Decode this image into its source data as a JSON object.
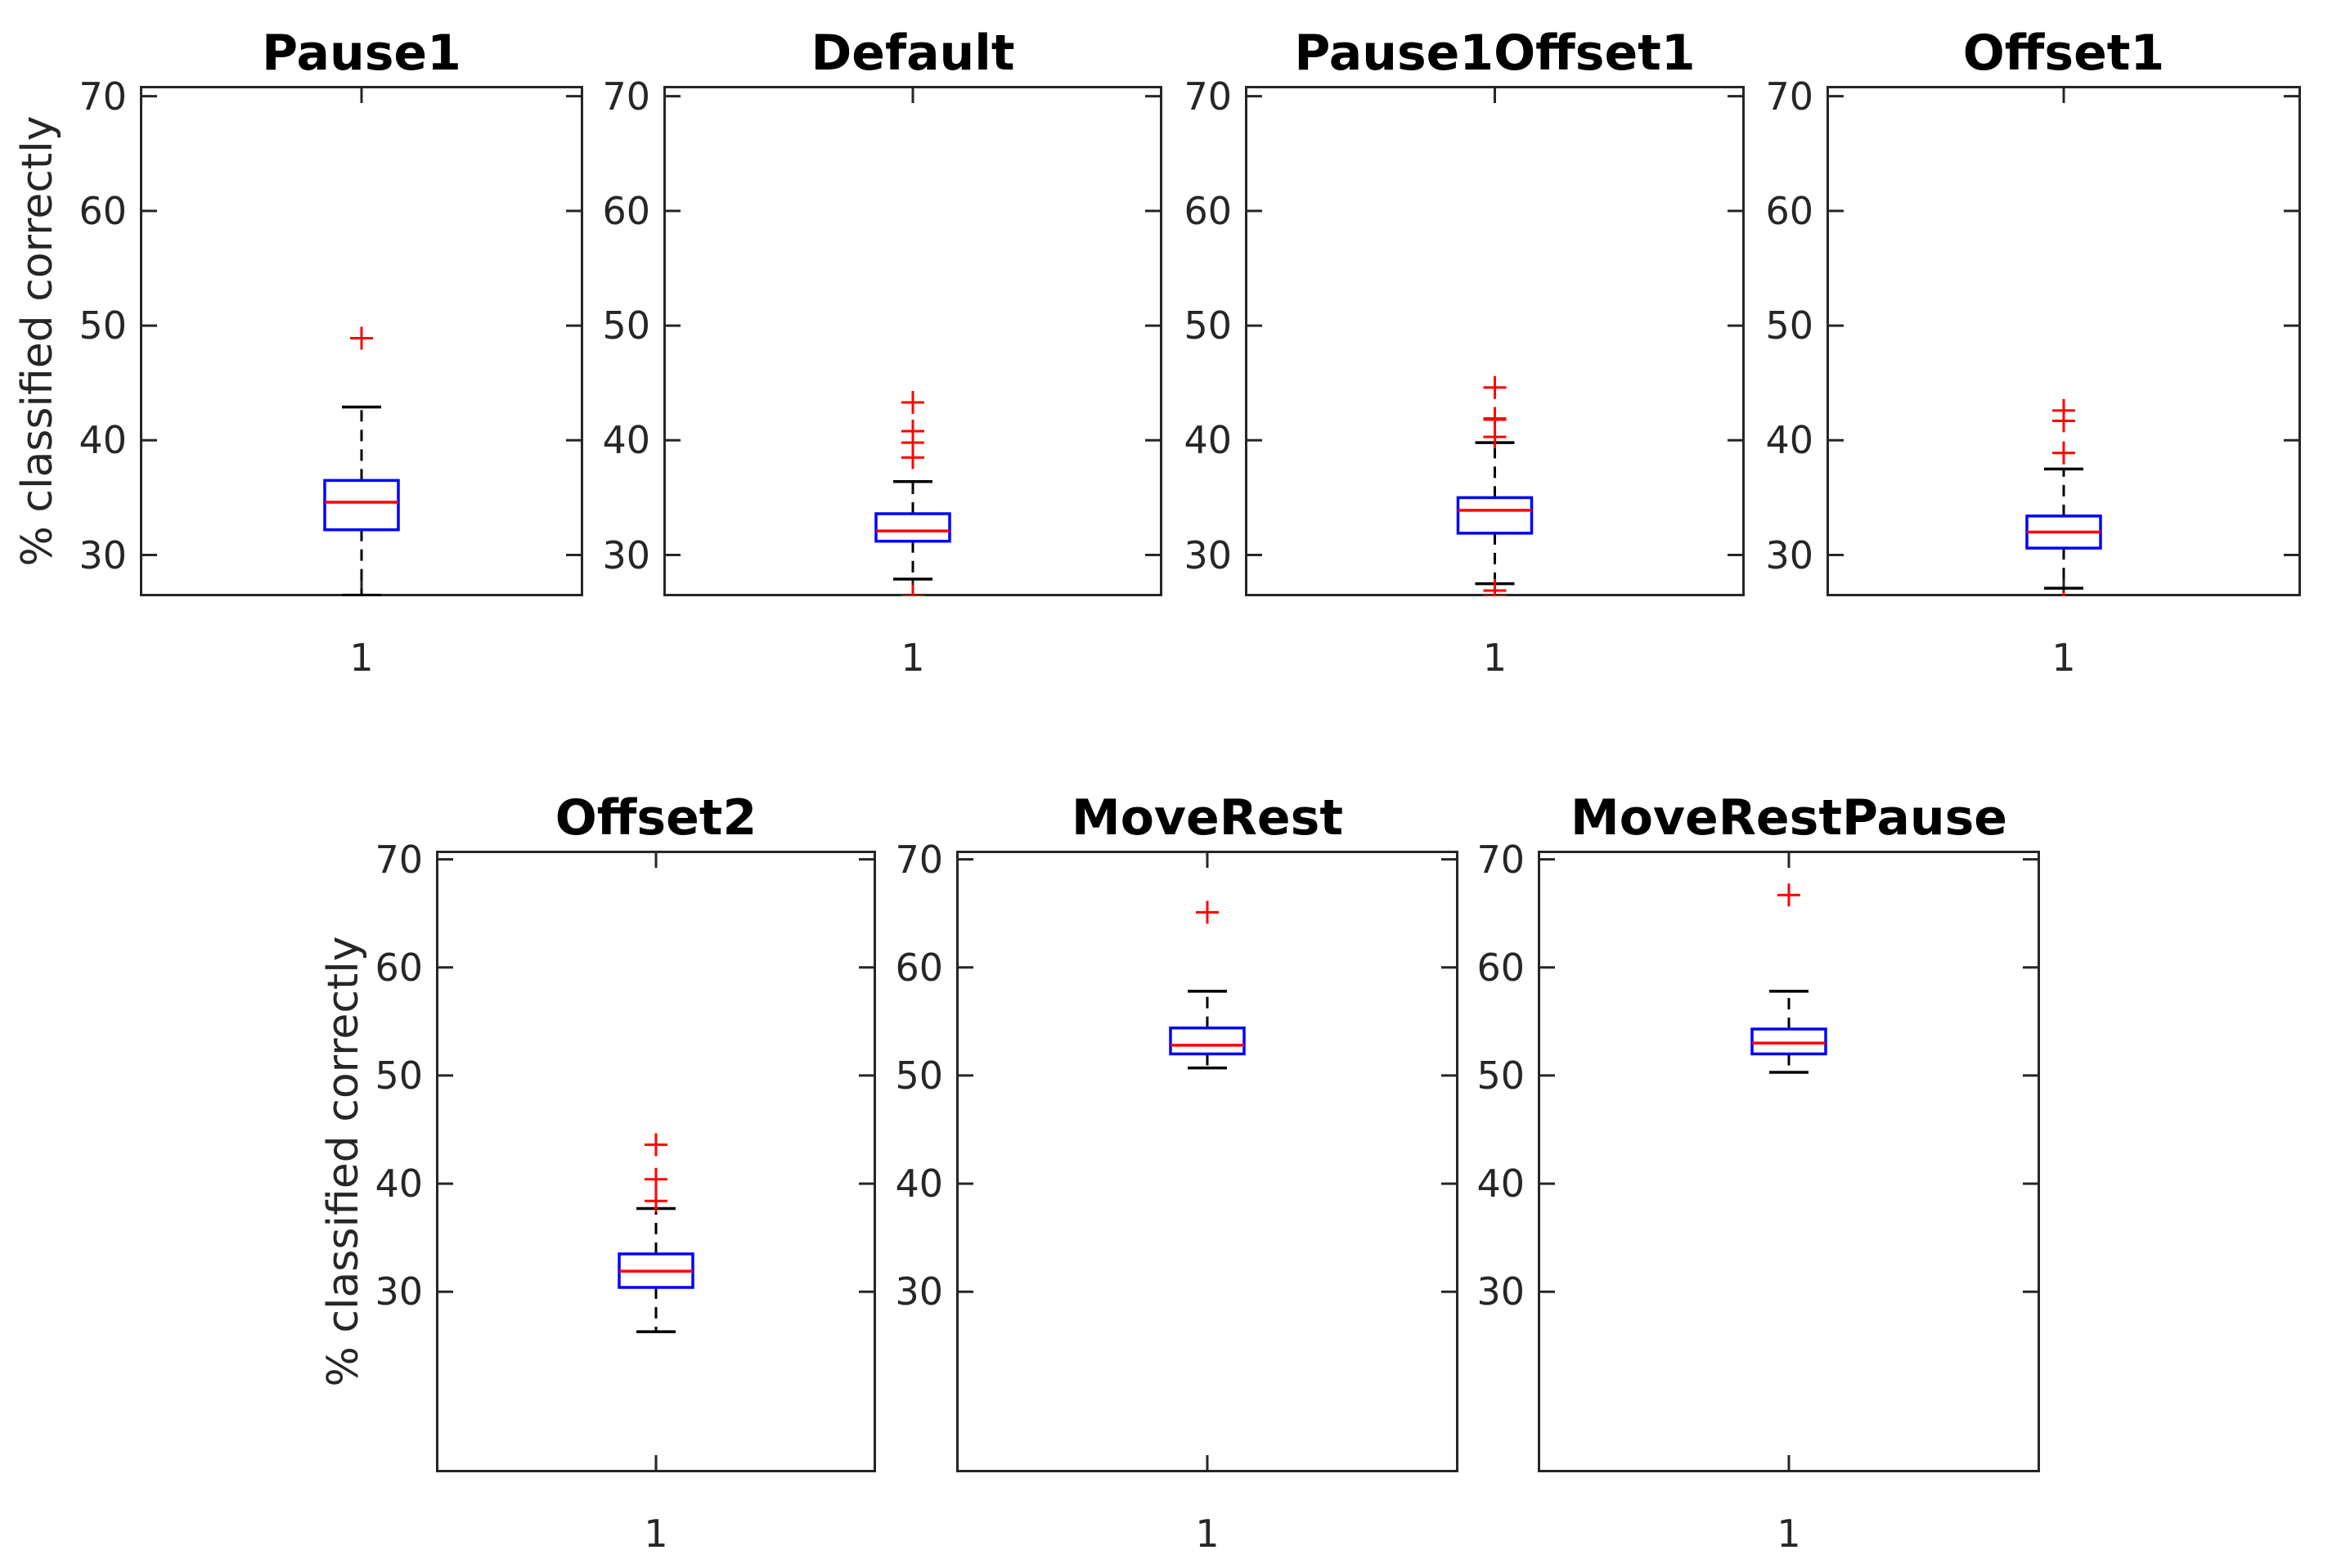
{
  "figure_background": "#ffffff",
  "ylabel": "% classified correctly",
  "xtick_label": "1",
  "yticks": [
    30,
    40,
    50,
    60,
    70
  ],
  "colors": {
    "box": "#0000ff",
    "median": "#ff0000",
    "outlier": "#ff0000",
    "whisker": "#000000",
    "cap": "#000000",
    "axis": "#262626",
    "tick_label": "#262626",
    "title": "#000000"
  },
  "chart_data": [
    {
      "type": "boxplot",
      "title": "Pause1",
      "x": 1,
      "xtick_label": "1",
      "ylabel": "% classified correctly",
      "yticks": [
        30,
        40,
        50,
        60,
        70
      ],
      "ylim": [
        26.4,
        70.9
      ],
      "median": 34.6,
      "q1": 32.2,
      "q3": 36.5,
      "whisker_low": 26.5,
      "whisker_high": 42.9,
      "outliers": [
        48.9
      ]
    },
    {
      "type": "boxplot",
      "title": "Default",
      "x": 1,
      "xtick_label": "1",
      "ylabel": "% classified correctly",
      "yticks": [
        30,
        40,
        50,
        60,
        70
      ],
      "ylim": [
        26.4,
        70.9
      ],
      "median": 32.1,
      "q1": 31.2,
      "q3": 33.6,
      "whisker_low": 27.9,
      "whisker_high": 36.4,
      "outliers": [
        43.3,
        40.8,
        39.8,
        38.5,
        26.4,
        26.1
      ]
    },
    {
      "type": "boxplot",
      "title": "Pause1Offset1",
      "x": 1,
      "xtick_label": "1",
      "ylabel": "% classified correctly",
      "yticks": [
        30,
        40,
        50,
        60,
        70
      ],
      "ylim": [
        26.4,
        70.9
      ],
      "median": 33.9,
      "q1": 31.9,
      "q3": 35.0,
      "whisker_low": 27.5,
      "whisker_high": 39.8,
      "outliers": [
        44.6,
        41.9,
        41.8,
        40.3,
        26.9,
        26.4
      ]
    },
    {
      "type": "boxplot",
      "title": "Offset1",
      "x": 1,
      "xtick_label": "1",
      "ylabel": "% classified correctly",
      "yticks": [
        30,
        40,
        50,
        60,
        70
      ],
      "ylim": [
        26.4,
        70.9
      ],
      "median": 32.0,
      "q1": 30.6,
      "q3": 33.4,
      "whisker_low": 27.1,
      "whisker_high": 37.5,
      "outliers": [
        42.6,
        41.7,
        38.9,
        25.8
      ]
    },
    {
      "type": "boxplot",
      "title": "Offset2",
      "x": 1,
      "xtick_label": "1",
      "ylabel": "% classified correctly",
      "yticks": [
        30,
        40,
        50,
        60,
        70
      ],
      "ylim": [
        13.3,
        70.8
      ],
      "median": 31.9,
      "q1": 30.4,
      "q3": 33.5,
      "whisker_low": 26.3,
      "whisker_high": 37.7,
      "outliers": [
        43.6,
        40.4,
        38.4
      ]
    },
    {
      "type": "boxplot",
      "title": "MoveRest",
      "x": 1,
      "xtick_label": "1",
      "ylabel": "% classified correctly",
      "yticks": [
        30,
        40,
        50,
        60,
        70
      ],
      "ylim": [
        13.3,
        70.8
      ],
      "median": 52.8,
      "q1": 52.0,
      "q3": 54.4,
      "whisker_low": 50.7,
      "whisker_high": 57.8,
      "outliers": [
        65.1
      ]
    },
    {
      "type": "boxplot",
      "title": "MoveRestPause",
      "x": 1,
      "xtick_label": "1",
      "ylabel": "% classified correctly",
      "yticks": [
        30,
        40,
        50,
        60,
        70
      ],
      "ylim": [
        13.3,
        70.8
      ],
      "median": 53.0,
      "q1": 52.0,
      "q3": 54.3,
      "whisker_low": 50.3,
      "whisker_high": 57.8,
      "outliers": [
        66.7
      ]
    }
  ]
}
